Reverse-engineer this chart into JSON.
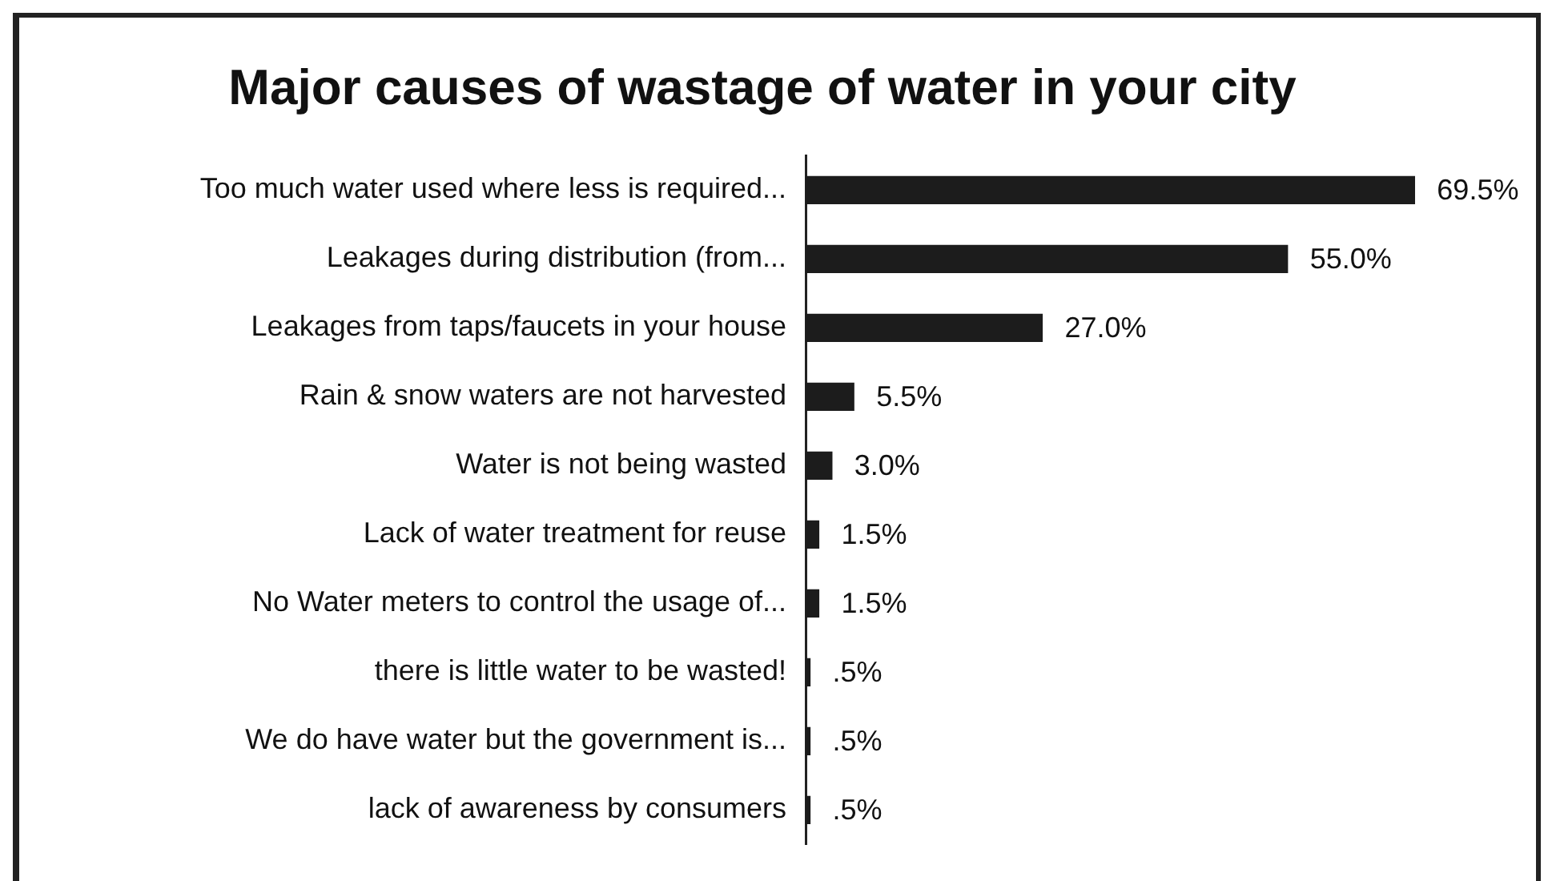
{
  "chart_data": {
    "type": "bar",
    "orientation": "horizontal",
    "title": "Major causes of wastage of water in your city",
    "categories": [
      "Too much water used where less is required...",
      "Leakages during distribution (from...",
      "Leakages from taps/faucets in your house",
      "Rain & snow waters are not harvested",
      "Water is not being wasted",
      "Lack of water treatment for reuse",
      "No Water meters to control the usage of...",
      "there is little water to be wasted!",
      "We do have water but the government is...",
      "lack of awareness by consumers"
    ],
    "values": [
      69.5,
      55,
      27,
      5.5,
      3,
      1.5,
      1.5,
      0.5,
      0.5,
      0.5
    ],
    "color": "#1c1c1c",
    "value_labels": [
      "69.5%",
      "55.0%",
      "27.0%",
      "5.5%",
      "3.0%",
      "1.5%",
      "1.5%",
      ".5%",
      ".5%",
      ".5%"
    ],
    "tick_labels": "y",
    "grid": false,
    "legend": false
  }
}
